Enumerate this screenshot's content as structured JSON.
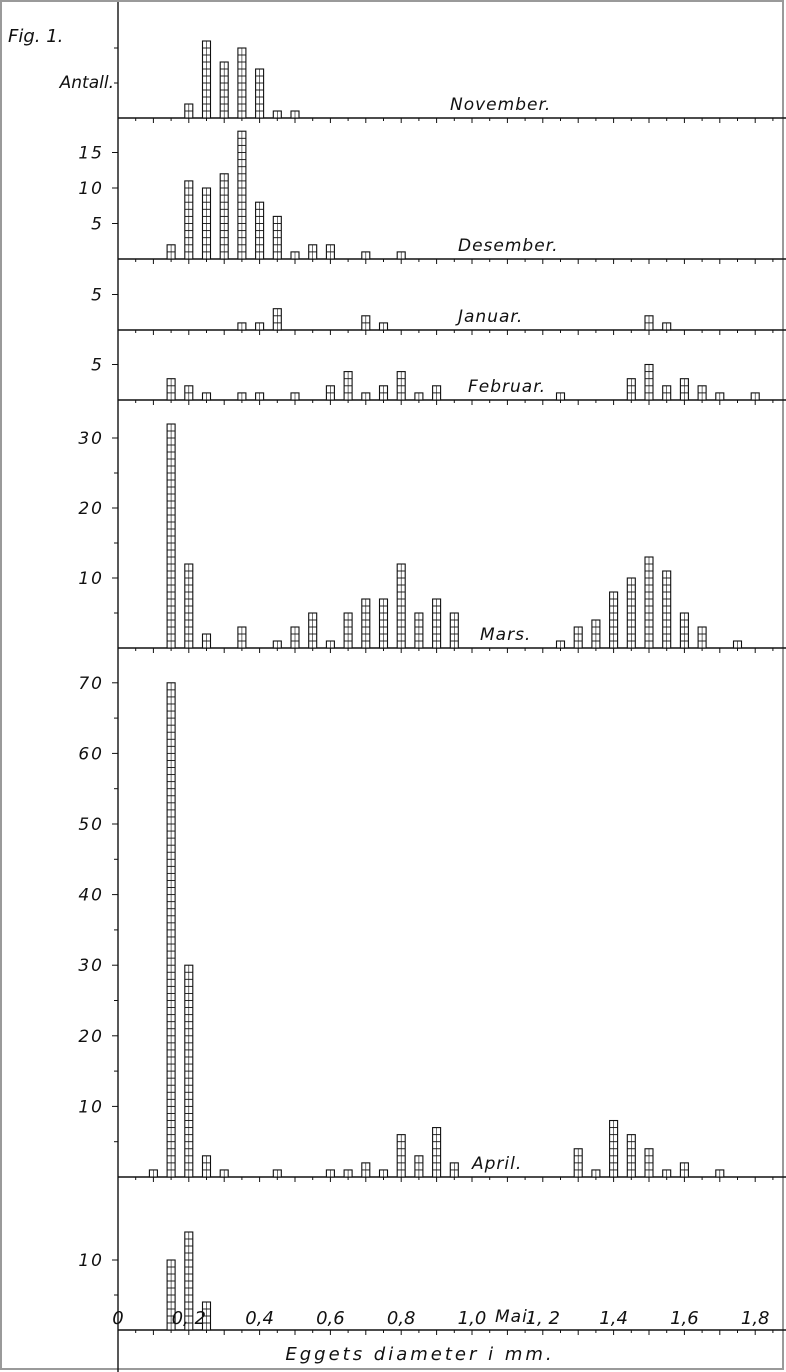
{
  "figure": {
    "label": "Fig. 1.",
    "y_axis_label": "Antall.",
    "x_axis_label": "Eggets diameter i mm.",
    "x_tick_labels": [
      "0",
      "0, 2",
      "0,4",
      "0,6",
      "0,8",
      "1,0",
      "1, 2",
      "1,4",
      "1,6",
      "1,8"
    ],
    "ink_color": "#111111",
    "paper_color": "#ffffff"
  },
  "chart_data": [
    {
      "type": "bar",
      "title": "November.",
      "xlabel": "Eggets diameter i mm.",
      "ylabel": "Antall.",
      "ylim": [
        0,
        12
      ],
      "yticks": [],
      "x": [
        0.2,
        0.25,
        0.3,
        0.35,
        0.4,
        0.45,
        0.5
      ],
      "values": [
        2,
        11,
        8,
        10,
        7,
        1,
        1
      ]
    },
    {
      "type": "bar",
      "title": "Desember.",
      "ylim": [
        0,
        18
      ],
      "yticks": [
        5,
        10,
        15
      ],
      "x": [
        0.15,
        0.2,
        0.25,
        0.3,
        0.35,
        0.4,
        0.45,
        0.5,
        0.55,
        0.6,
        0.7,
        0.8
      ],
      "values": [
        2,
        11,
        10,
        12,
        18,
        8,
        6,
        1,
        2,
        2,
        1,
        1
      ]
    },
    {
      "type": "bar",
      "title": "Januar.",
      "ylim": [
        0,
        5
      ],
      "yticks": [
        5
      ],
      "x": [
        0.35,
        0.4,
        0.45,
        0.7,
        0.75,
        1.5,
        1.55
      ],
      "values": [
        1,
        1,
        3,
        2,
        1,
        2,
        1
      ]
    },
    {
      "type": "bar",
      "title": "Februar.",
      "ylim": [
        0,
        5
      ],
      "yticks": [
        5
      ],
      "x": [
        0.15,
        0.2,
        0.25,
        0.35,
        0.4,
        0.5,
        0.6,
        0.65,
        0.7,
        0.75,
        0.8,
        0.85,
        0.9,
        1.25,
        1.45,
        1.5,
        1.55,
        1.6,
        1.65,
        1.7,
        1.8
      ],
      "values": [
        3,
        2,
        1,
        1,
        1,
        1,
        2,
        4,
        1,
        2,
        4,
        1,
        2,
        1,
        3,
        5,
        2,
        3,
        2,
        1,
        1
      ]
    },
    {
      "type": "bar",
      "title": "Mars.",
      "ylim": [
        0,
        32
      ],
      "yticks": [
        10,
        20,
        30
      ],
      "x": [
        0.15,
        0.2,
        0.25,
        0.35,
        0.45,
        0.5,
        0.55,
        0.6,
        0.65,
        0.7,
        0.75,
        0.8,
        0.85,
        0.9,
        0.95,
        1.25,
        1.3,
        1.35,
        1.4,
        1.45,
        1.5,
        1.55,
        1.6,
        1.65,
        1.75
      ],
      "values": [
        32,
        12,
        2,
        3,
        1,
        3,
        5,
        1,
        5,
        7,
        7,
        12,
        5,
        7,
        5,
        1,
        3,
        4,
        8,
        10,
        13,
        11,
        5,
        3,
        1
      ]
    },
    {
      "type": "bar",
      "title": "April.",
      "ylim": [
        0,
        72
      ],
      "yticks": [
        10,
        20,
        30,
        40,
        50,
        60,
        70
      ],
      "x": [
        0.1,
        0.15,
        0.2,
        0.25,
        0.3,
        0.45,
        0.6,
        0.65,
        0.7,
        0.75,
        0.8,
        0.85,
        0.9,
        0.95,
        1.3,
        1.35,
        1.4,
        1.45,
        1.5,
        1.55,
        1.6,
        1.7
      ],
      "values": [
        1,
        70,
        30,
        3,
        1,
        1,
        1,
        1,
        2,
        1,
        6,
        3,
        7,
        2,
        4,
        1,
        8,
        6,
        4,
        1,
        2,
        1
      ]
    },
    {
      "type": "bar",
      "title": "Mai.",
      "ylim": [
        0,
        14
      ],
      "yticks": [
        10
      ],
      "x": [
        0.15,
        0.2,
        0.25
      ],
      "values": [
        10,
        14,
        4
      ]
    }
  ]
}
